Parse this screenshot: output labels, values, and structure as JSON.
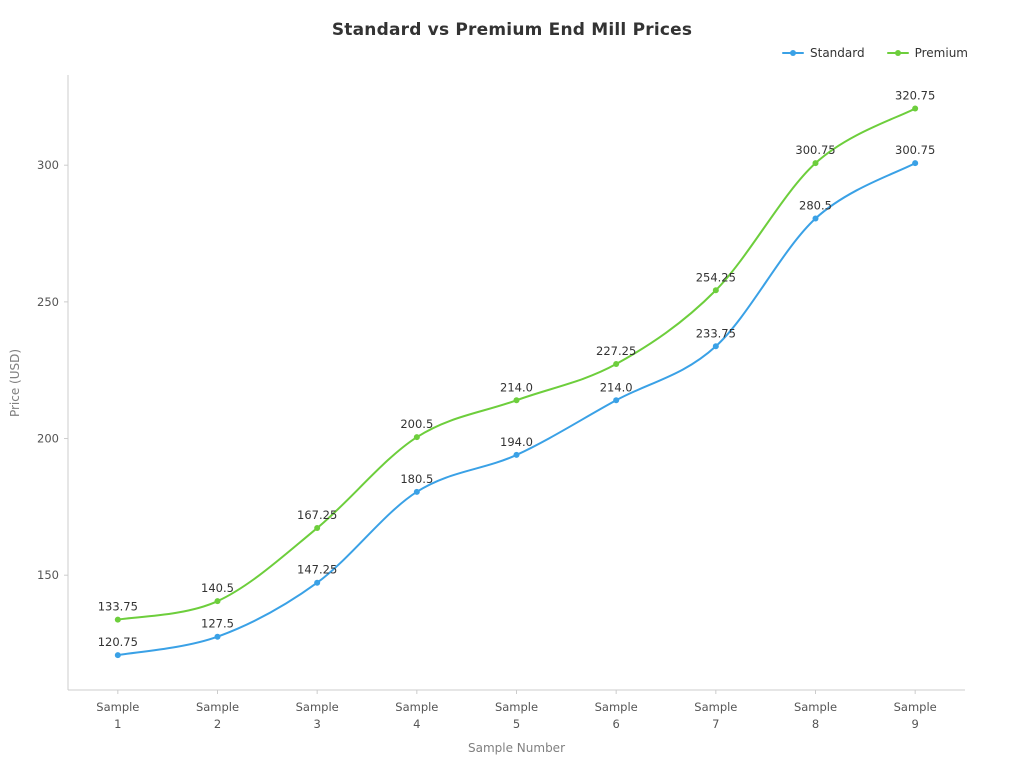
{
  "chart_data": {
    "type": "line",
    "title": "Standard vs Premium End Mill Prices",
    "xlabel": "Sample Number",
    "ylabel": "Price (USD)",
    "categories": [
      "Sample 1",
      "Sample 2",
      "Sample 3",
      "Sample 4",
      "Sample 5",
      "Sample 6",
      "Sample 7",
      "Sample 8",
      "Sample 9"
    ],
    "series": [
      {
        "name": "Standard",
        "color": "#3aa1e6",
        "values": [
          120.75,
          127.5,
          147.25,
          180.5,
          194.0,
          214.0,
          233.75,
          280.5,
          300.75
        ],
        "labels": [
          "120.75",
          "127.5",
          "147.25",
          "180.5",
          "194.0",
          "214.0",
          "233.75",
          "280.5",
          "300.75"
        ]
      },
      {
        "name": "Premium",
        "color": "#6dce3c",
        "values": [
          133.75,
          140.5,
          167.25,
          200.5,
          214.0,
          227.25,
          254.25,
          300.75,
          320.75
        ],
        "labels": [
          "133.75",
          "140.5",
          "167.25",
          "200.5",
          "214.0",
          "227.25",
          "254.25",
          "300.75",
          "320.75"
        ]
      }
    ],
    "y_ticks": [
      150,
      200,
      250,
      300
    ],
    "ylim": [
      108,
      333
    ],
    "grid": false,
    "legend_position": "top-right",
    "line_style": "smooth",
    "marker": "circle"
  },
  "colors": {
    "axis": "#cccccc",
    "tick_label": "#555555",
    "axis_label": "#808080",
    "data_label": "#333333",
    "title": "#333333"
  }
}
